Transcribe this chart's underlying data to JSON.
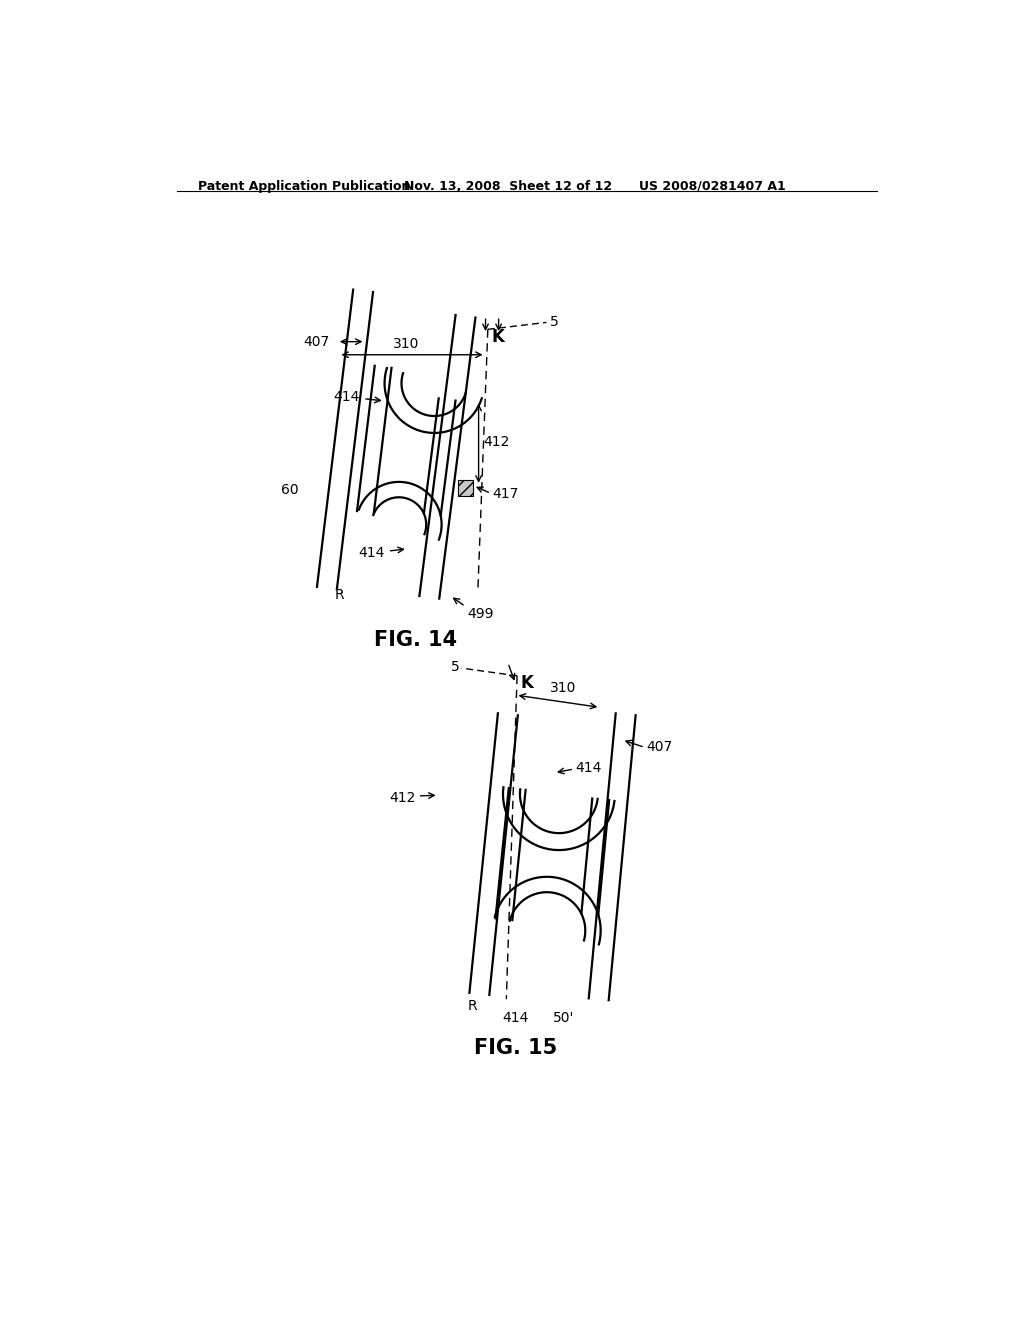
{
  "bg_color": "#ffffff",
  "header_text": "Patent Application Publication",
  "header_date": "Nov. 13, 2008  Sheet 12 of 12",
  "header_patent": "US 2008/0281407 A1",
  "fig14_label": "FIG. 14",
  "fig15_label": "FIG. 15",
  "line_color": "#000000",
  "lw": 1.6,
  "annotation_fontsize": 10,
  "header_fontsize": 9,
  "fig_label_fontsize": 15
}
